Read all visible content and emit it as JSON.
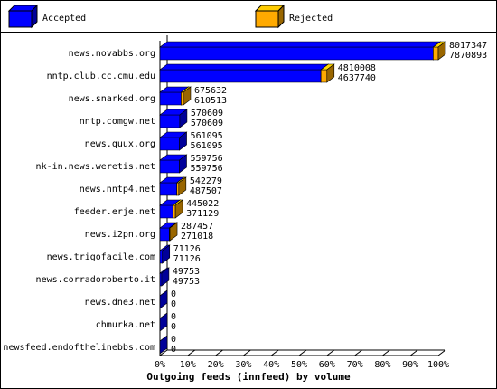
{
  "chart_data": {
    "type": "bar3d",
    "title": "Outgoing feeds (innfeed) by volume",
    "categories": [
      "news.novabbs.org",
      "nntp.club.cc.cmu.edu",
      "news.snarked.org",
      "nntp.comgw.net",
      "news.quux.org",
      "nk-in.news.weretis.net",
      "news.nntp4.net",
      "feeder.erje.net",
      "news.i2pn.org",
      "news.trigofacile.com",
      "news.corradoroberto.it",
      "news.dne3.net",
      "chmurka.net",
      "newsfeed.endofthelinebbs.com"
    ],
    "totals": [
      8017347,
      4810008,
      675632,
      570609,
      561095,
      559756,
      542279,
      445022,
      287457,
      71126,
      49753,
      0,
      0,
      0
    ],
    "series": [
      {
        "name": "Accepted",
        "color": "#0000ff",
        "values": [
          7870893,
          4637740,
          610513,
          570609,
          561095,
          559756,
          487507,
          371129,
          271018,
          71126,
          49753,
          0,
          0,
          0
        ]
      },
      {
        "name": "Rejected",
        "color": "#ffaa00"
      }
    ],
    "xlim": [
      0,
      100
    ],
    "xticks": [
      {
        "value": 0,
        "label": "0%"
      },
      {
        "value": 10,
        "label": "10%"
      },
      {
        "value": 20,
        "label": "20%"
      },
      {
        "value": 30,
        "label": "30%"
      },
      {
        "value": 40,
        "label": "40%"
      },
      {
        "value": 50,
        "label": "50%"
      },
      {
        "value": 60,
        "label": "60%"
      },
      {
        "value": 70,
        "label": "70%"
      },
      {
        "value": 80,
        "label": "80%"
      },
      {
        "value": 90,
        "label": "90%"
      },
      {
        "value": 100,
        "label": "100%"
      }
    ]
  }
}
